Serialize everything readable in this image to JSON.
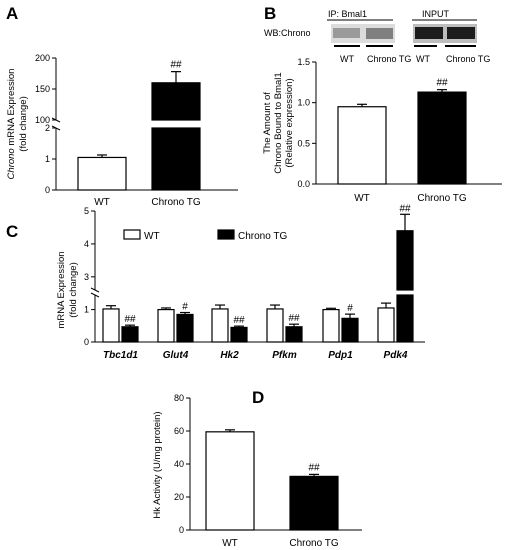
{
  "panels": {
    "A": {
      "label": "A"
    },
    "B": {
      "label": "B"
    },
    "C": {
      "label": "C"
    },
    "D": {
      "label": "D"
    }
  },
  "western_blot": {
    "wb_label": "WB:Chrono",
    "ip_label": "IP: Bmal1",
    "input_label": "INPUT",
    "lane_labels": [
      "WT",
      "Chrono TG",
      "WT",
      "Chrono TG"
    ]
  },
  "chart_data": [
    {
      "panel": "A",
      "type": "bar",
      "categories": [
        "WT",
        "Chrono TG"
      ],
      "values": [
        1.05,
        160
      ],
      "errors": [
        0.08,
        18
      ],
      "colors": [
        "#ffffff",
        "#000000"
      ],
      "significance": [
        "",
        "##"
      ],
      "ylabel_italic": "Chrono",
      "ylabel_rest": " mRNA Expression",
      "ylabel_line2": "(fold change)",
      "y_break": {
        "lower": [
          0,
          2
        ],
        "upper": [
          100,
          200
        ]
      },
      "yticks_lower": [
        "0",
        "1",
        "2"
      ],
      "yticks_upper": [
        "100",
        "150",
        "200"
      ]
    },
    {
      "panel": "B",
      "type": "bar",
      "categories": [
        "WT",
        "Chrono TG"
      ],
      "values": [
        0.95,
        1.13
      ],
      "errors": [
        0.03,
        0.03
      ],
      "colors": [
        "#ffffff",
        "#000000"
      ],
      "significance": [
        "",
        "##"
      ],
      "ylabel_lines": [
        "The Amount of",
        "Chrono Bound to Bmal1",
        "(Relative expression)"
      ],
      "ylim": [
        0,
        1.5
      ],
      "yticks": [
        "0.0",
        "0.5",
        "1.0",
        "1.5"
      ]
    },
    {
      "panel": "C",
      "type": "bar",
      "categories": [
        "Tbc1d1",
        "Glut4",
        "Hk2",
        "Pfkm",
        "Pdp1",
        "Pdk4"
      ],
      "series": [
        {
          "name": "WT",
          "color": "#ffffff",
          "values": [
            1.02,
            1.0,
            1.02,
            1.02,
            1.0,
            1.05
          ],
          "errors": [
            0.1,
            0.05,
            0.12,
            0.12,
            0.04,
            0.15
          ]
        },
        {
          "name": "Chrono TG",
          "color": "#000000",
          "values": [
            0.47,
            0.85,
            0.45,
            0.47,
            0.73,
            4.4
          ],
          "errors": [
            0.05,
            0.06,
            0.04,
            0.08,
            0.13,
            0.5
          ]
        }
      ],
      "significance": [
        "##",
        "#",
        "##",
        "##",
        "#",
        "##"
      ],
      "ylabel_lines": [
        "mRNA Expression",
        "(fold change)"
      ],
      "y_break": {
        "lower": [
          0,
          1.45
        ],
        "upper": [
          2.6,
          5.0
        ]
      },
      "yticks": [
        "0",
        "1",
        "3",
        "4",
        "5"
      ]
    },
    {
      "panel": "D",
      "type": "bar",
      "categories": [
        "WT",
        "Chrono TG"
      ],
      "values": [
        59.5,
        32.5
      ],
      "errors": [
        1.2,
        1.2
      ],
      "colors": [
        "#ffffff",
        "#000000"
      ],
      "significance": [
        "",
        "##"
      ],
      "ylabel": "Hk Activity (U/mg protein)",
      "ylim": [
        0,
        80
      ],
      "yticks": [
        "0",
        "20",
        "40",
        "60",
        "80"
      ]
    }
  ]
}
